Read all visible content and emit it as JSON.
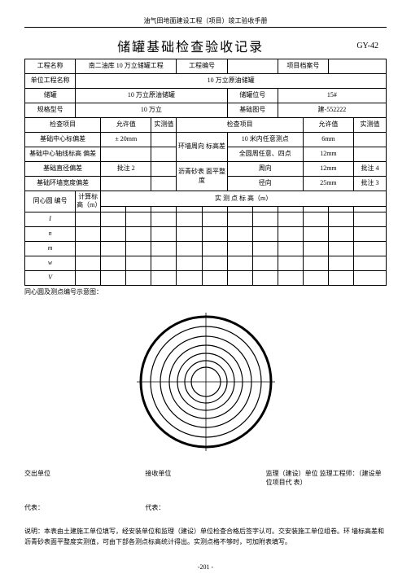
{
  "header": "油气田地面建设工程（项目）竣工验收手册",
  "title": "储罐基础检查验收记录",
  "code": "GY-42",
  "row1": {
    "c1": "工程名称",
    "c2": "南二油库 10 万立储罐工程",
    "c3": "工程编号",
    "c4": "",
    "c5": "项目档案号",
    "c6": ""
  },
  "row2": {
    "c1": "单位工程名称",
    "c2": "10 万立原油储罐"
  },
  "row3": {
    "c1": "储罐",
    "c2": "10 万立原油储罐",
    "c3": "储罐位号",
    "c4": "15#"
  },
  "row4": {
    "c1": "规格型号",
    "c2": "10 万立",
    "c3": "基础图号",
    "c4": "建-552222"
  },
  "hdr5": {
    "c1": "检查项目",
    "c2": "允许值",
    "c3": "实测值",
    "c4": "检查项目",
    "c5": "允许值",
    "c6": "实测值"
  },
  "row6": {
    "c1": "基础中心标偏差",
    "c2": "± 20mm",
    "c3": "",
    "mid": "环墙周向 标高差",
    "c4": "10 米内任意测点",
    "c5": "6mm",
    "c6": ""
  },
  "row7": {
    "c1": "基础中心轴线标高 偏差",
    "c2": "",
    "c3": "",
    "c4": "全圆周任意、四点",
    "c5": "12mm",
    "c6": ""
  },
  "row8": {
    "c1": "基础直径偏差",
    "c2": "批注 2",
    "c3": "",
    "mid": "沥青砂表 面平整度",
    "c4": "周向",
    "c5": "12mm",
    "c6": "批注 4"
  },
  "row9": {
    "c1": "基础环墙宽度偏差",
    "c2": "",
    "c3": "",
    "c4": "径向",
    "c5": "25mm",
    "c6": "批注 3"
  },
  "grid": {
    "c1": "同心圆 编号",
    "c2": "计算标高（m）",
    "mid": "实 测 点 标 高（m）",
    "rows": [
      "I",
      "n",
      "m",
      "w",
      "V"
    ]
  },
  "caption": "同心圆及测点编号示意图：",
  "sig": {
    "a": "交出单位",
    "b": "接收单位",
    "c": "监理（建设）单位 监理工程师：（建设单位项目代 表）",
    "rep": "代表："
  },
  "footnote": "说明：本表由土建施工单位填写，经安装单位和监理（建设）单位检查合格后签字认可。交安装施工单位组卷。环 墙标高差和沥青砂表面平整度实测值，可由下部各测点标高统计得出。实测点格不够时，可加附表填写。",
  "page": "-201 -",
  "diagram": {
    "size": 170,
    "rings": [
      80,
      68,
      56,
      45,
      35,
      26,
      18
    ],
    "stroke_outer": 3,
    "stroke_inner": 1.2,
    "color": "#000000"
  }
}
